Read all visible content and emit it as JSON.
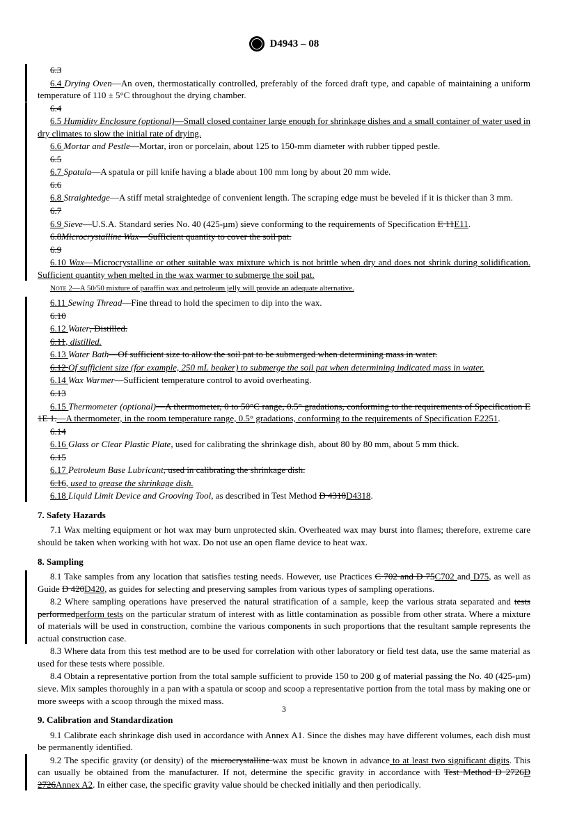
{
  "header": {
    "designation": "D4943 – 08"
  },
  "body": {
    "p63s": "6.3",
    "p64": {
      "num": "6.4 ",
      "term": "Drying Oven",
      "dash": "—",
      "text": "An oven, thermostatically controlled, preferably of the forced draft type, and capable of maintaining a uniform temperature of 110 ± 5°C throughout the drying chamber."
    },
    "p64s": "6.4",
    "p65": {
      "num": "6.5 ",
      "term": "Humidity Enclosure (optional)",
      "dash": "—",
      "text": "Small closed container large enough for shrinkage dishes and a small container of water used in dry climates to slow the initial rate of drying."
    },
    "p66": {
      "num": "6.6 ",
      "term": "Mortar and Pestle",
      "dash": "—",
      "text": "Mortar, iron or porcelain, about 125 to 150-mm diameter with rubber tipped pestle."
    },
    "p65s": "6.5",
    "p67": {
      "num": "6.7 ",
      "term": "Spatula",
      "dash": "—",
      "text": "A spatula or pill knife having a blade about 100 mm long by about 20 mm wide."
    },
    "p66s": "6.6",
    "p68": {
      "num": "6.8 ",
      "term": "Straightedge",
      "dash": "—",
      "text": "A stiff metal straightedge of convenient length. The scraping edge must be beveled if it is thicker than 3 mm."
    },
    "p67s": "6.7",
    "p69": {
      "num": "6.9 ",
      "term": "Sieve",
      "dash": "—",
      "text1": "U.S.A. Standard series No. 40 (425-µm) sieve conforming to the requirements of Specification ",
      "old": "E 11",
      "new": "E11",
      "text2": "."
    },
    "p68s": {
      "num": "6.8",
      "term": "Microcrystalline Wax",
      "dash": "—",
      "text": "Sufficient quantity to cover the soil pat."
    },
    "p69s": "6.9",
    "p610": {
      "num": "6.10 ",
      "term": "Wax",
      "dash": "—",
      "text": "Microcrystalline or other suitable wax mixture which is not brittle when dry and does not shrink during solidification. Sufficient quantity when melted in the wax warmer to submerge the soil pat."
    },
    "note2": {
      "label": "Note 2—",
      "text": "A 50/50 mixture of paraffin wax and petroleum jelly will provide an adequate alternative."
    },
    "p611": {
      "num": "6.11 ",
      "term": "Sewing Thread",
      "dash": "—",
      "text": "Fine thread to hold the specimen to dip into the wax."
    },
    "p610s": "6.10",
    "p612": {
      "num": "6.12 ",
      "term": "Water",
      "old": ", Distilled."
    },
    "p611s": {
      "a": "6.11",
      "b": ", ",
      "c": "distilled."
    },
    "p613": {
      "num": "6.13 ",
      "term": "Water Bath",
      "dash": "—",
      "old": "Of sufficient size to allow the soil pat to be submerged when determining mass in water."
    },
    "p612s": {
      "a": "6.12  ",
      "b": "Of sufficient size (for example, 250 mL beaker) to submerge the soil pat when determining indicated mass in water."
    },
    "p614": {
      "num": "6.14 ",
      "term": "Wax Warmer",
      "dash": "—",
      "text": "Sufficient temperature control to avoid overheating."
    },
    "p613s": "6.13",
    "p615": {
      "num": "6.15 ",
      "term": "Thermometer (optional)",
      "dash": "—",
      "old": "A thermometer, 0 to 50°C range, 0.5° gradations, conforming to the requirements of Specification E 1E 1.",
      "new": "A thermometer, in the room temperature range, 0.5° gradations, conforming to the requirements of Specification E2251",
      "tail": "."
    },
    "p614s": "6.14",
    "p616": {
      "num": "6.16 ",
      "term": "Glass or Clear Plastic Plate",
      "text": ", used for calibrating the shrinkage dish, about 80 by 80 mm, about 5 mm thick."
    },
    "p615s": "6.15",
    "p617": {
      "num": "6.17 ",
      "term": "Petroleum Base Lubricant",
      "old": ", used in calibrating the shrinkage dish."
    },
    "p616s": {
      "a": "6.16",
      "b": ", ",
      "c": "used to grease the shrinkage dish."
    },
    "p618": {
      "num": "6.18 ",
      "term": "Liquid Limit Device and Grooving Tool",
      "text": ", as described in Test Method ",
      "old": "D 4318",
      "new": "D4318",
      "tail": "."
    },
    "sec7": {
      "head": "7. Safety Hazards",
      "p71": "7.1 Wax melting equipment or hot wax may burn unprotected skin. Overheated wax may burst into flames; therefore, extreme care should be taken when working with hot wax. Do not use an open flame device to heat wax."
    },
    "sec8": {
      "head": "8. Sampling",
      "p81": {
        "a": "8.1 Take samples from any location that satisfies testing needs. However, use Practices ",
        "old1": "C 702 and D 75",
        "new1": "C702 ",
        "new1b": "and",
        "new1c": " D75",
        "b": ", as well as Guide ",
        "old2": "D 420",
        "new2": "D420",
        "c": ", as guides for selecting and preserving samples from various types of sampling operations."
      },
      "p82": {
        "a": "8.2 Where sampling operations have preserved the natural stratification of a sample, keep the various strata separated and ",
        "old": "tests performed",
        "new": "perform tests",
        "b": " on the particular stratum of interest with as little contamination as possible from other strata. Where a mixture of materials will be used in construction, combine the various components in such proportions that the resultant sample represents the actual construction case."
      },
      "p83": "8.3 Where data from this test method are to be used for correlation with other laboratory or field test data, use the same material as used for these tests where possible.",
      "p84": "8.4 Obtain a representative portion from the total sample sufficient to provide 150 to 200 g of material passing the No. 40 (425-µm) sieve. Mix samples thoroughly in a pan with a spatula or scoop and scoop a representative portion from the total mass by making one or more sweeps with a scoop through the mixed mass."
    },
    "sec9": {
      "head": "9. Calibration and Standardization",
      "p91": "9.1 Calibrate each shrinkage dish used in accordance with Annex A1. Since the dishes may have different volumes, each dish must be permanently identified.",
      "p92": {
        "a": "9.2 The specific gravity (or density) of the ",
        "old1": "microcrystalline ",
        "b": "wax must be known in advance",
        "new1": " to at least two significant digits",
        "c": ". This can usually be obtained from the manufacturer. If not, determine the specific gravity in accordance with ",
        "old2": "Test Method D 2726",
        "new2": "D 2726",
        "new3": "Annex A2",
        "d": ". In either case, the specific gravity value should be checked initially and then periodically."
      }
    }
  },
  "pagenum": "3"
}
